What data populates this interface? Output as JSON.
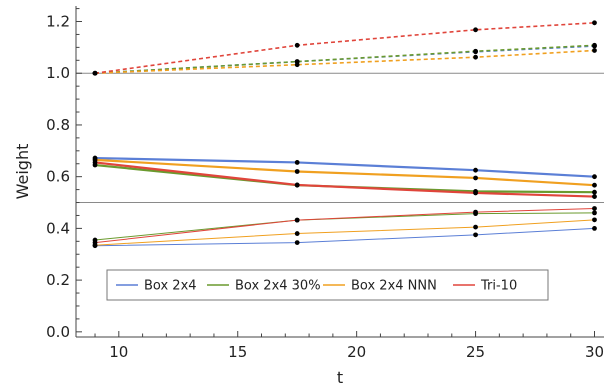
{
  "chart_data": {
    "type": "line",
    "xlabel": "t",
    "ylabel": "Weight",
    "xlim": [
      8.2,
      30.4
    ],
    "ylim": [
      -0.02,
      1.26
    ],
    "xticks": [
      10,
      15,
      20,
      25,
      30
    ],
    "yticks": [
      0.0,
      0.2,
      0.4,
      0.6,
      0.8,
      1.0,
      1.2
    ],
    "ytick_labels": [
      "0.0",
      "0.2",
      "0.4",
      "0.6",
      "0.8",
      "1.0",
      "1.2"
    ],
    "x": [
      9,
      17.5,
      25,
      30
    ],
    "reference_lines": [
      1.0,
      0.5
    ],
    "grid": false,
    "legend_position": "bottom-center",
    "series": [
      {
        "name": "Box 2x4",
        "color": "#5b7fd6",
        "upper": [
          1.0,
          1.045,
          1.083,
          1.105
        ],
        "middle": [
          0.672,
          0.655,
          0.625,
          0.6
        ],
        "lower": [
          0.333,
          0.345,
          0.375,
          0.4
        ]
      },
      {
        "name": "Box 2x4 30%",
        "color": "#6a9a2e",
        "upper": [
          1.0,
          1.045,
          1.085,
          1.108
        ],
        "middle": [
          0.645,
          0.567,
          0.543,
          0.54
        ],
        "lower": [
          0.355,
          0.432,
          0.457,
          0.46
        ]
      },
      {
        "name": "Box 2x4 NNN",
        "color": "#f0a020",
        "upper": [
          1.0,
          1.033,
          1.062,
          1.088
        ],
        "middle": [
          0.665,
          0.62,
          0.595,
          0.567
        ],
        "lower": [
          0.335,
          0.38,
          0.405,
          0.433
        ]
      },
      {
        "name": "Tri-10",
        "color": "#e0453b",
        "upper": [
          1.0,
          1.108,
          1.168,
          1.195
        ],
        "middle": [
          0.655,
          0.568,
          0.537,
          0.523
        ],
        "lower": [
          0.345,
          0.432,
          0.463,
          0.477
        ]
      }
    ]
  }
}
